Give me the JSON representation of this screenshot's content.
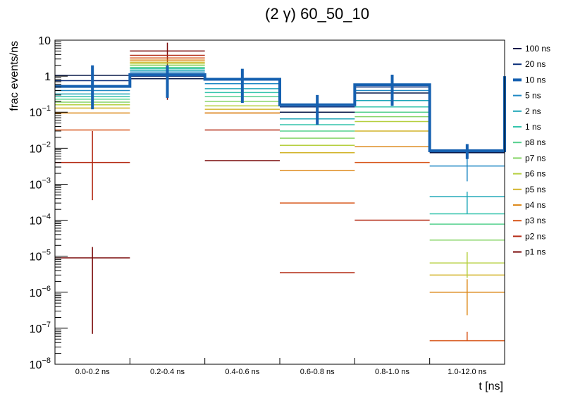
{
  "chart_data": {
    "type": "line",
    "style": "log-scale step histogram with error bars",
    "title": "(2 γ) 60_50_10",
    "xlabel": "t [ns]",
    "ylabel": "frac events/ns",
    "yscale": "log",
    "ylim": [
      1e-08,
      10
    ],
    "y_ticks": [
      {
        "value": 10,
        "base": "10",
        "exp": ""
      },
      {
        "value": 1,
        "base": "1",
        "exp": ""
      },
      {
        "value": 0.1,
        "base": "10",
        "exp": "−1"
      },
      {
        "value": 0.01,
        "base": "10",
        "exp": "−2"
      },
      {
        "value": 0.001,
        "base": "10",
        "exp": "−3"
      },
      {
        "value": 0.0001,
        "base": "10",
        "exp": "−4"
      },
      {
        "value": 1e-05,
        "base": "10",
        "exp": "−5"
      },
      {
        "value": 1e-06,
        "base": "10",
        "exp": "−6"
      },
      {
        "value": 1e-07,
        "base": "10",
        "exp": "−7"
      },
      {
        "value": 1e-08,
        "base": "10",
        "exp": "−8"
      }
    ],
    "categories": [
      "0.0-0.2 ns",
      "0.2-0.4 ns",
      "0.4-0.6 ns",
      "0.6-0.8 ns",
      "0.8-1.0 ns",
      "1.0-12.0 ns"
    ],
    "legend_position": "right",
    "series": [
      {
        "name": "100 ns",
        "color": "#0a1a4a",
        "values": [
          1.05,
          0.85,
          0.85,
          0.1,
          0.34,
          0.0075
        ]
      },
      {
        "name": "20 ns",
        "color": "#0b2f7a",
        "values": [
          0.75,
          1.0,
          0.8,
          0.14,
          0.5,
          0.0085
        ]
      },
      {
        "name": "10 ns",
        "color": "#1560b0",
        "values": [
          0.52,
          1.1,
          0.82,
          0.16,
          0.58,
          0.0085
        ],
        "thick": true,
        "errors": [
          [
            0.12,
            2.0
          ],
          [
            0.25,
            2.0
          ],
          [
            0.18,
            1.6
          ],
          [
            0.045,
            0.3
          ],
          [
            0.15,
            1.1
          ],
          [
            0.005,
            0.013
          ]
        ]
      },
      {
        "name": "5 ns",
        "color": "#1f88c4",
        "values": [
          0.4,
          1.3,
          0.62,
          0.1,
          0.4,
          0.0032
        ],
        "errors": [
          [
            0.4,
            0.4
          ],
          [
            1.3,
            1.3
          ],
          [
            0.62,
            0.62
          ],
          [
            0.1,
            0.1
          ],
          [
            0.4,
            0.4
          ],
          [
            0.0012,
            0.0062
          ]
        ]
      },
      {
        "name": "2 ns",
        "color": "#1ea6b8",
        "values": [
          0.32,
          1.45,
          0.45,
          0.065,
          0.21,
          0.00045
        ],
        "errors": [
          [
            0.32,
            0.32
          ],
          [
            1.45,
            1.45
          ],
          [
            0.45,
            0.45
          ],
          [
            0.065,
            0.065
          ],
          [
            0.21,
            0.21
          ],
          [
            0.00015,
            0.00062
          ]
        ]
      },
      {
        "name": "1 ns",
        "color": "#33c4ac",
        "values": [
          0.27,
          1.6,
          0.35,
          0.045,
          0.14,
          0.00015
        ]
      },
      {
        "name": "p8 ns",
        "color": "#55d08e",
        "values": [
          0.23,
          1.75,
          0.27,
          0.03,
          0.1,
          7.8e-05
        ]
      },
      {
        "name": "p7 ns",
        "color": "#86d466",
        "values": [
          0.19,
          1.95,
          0.2,
          0.019,
          0.075,
          2.8e-05
        ]
      },
      {
        "name": "p6 ns",
        "color": "#b6cf3f",
        "values": [
          0.16,
          2.2,
          0.15,
          0.012,
          0.055,
          6.5e-06
        ],
        "errors": [
          [
            0.16,
            0.16
          ],
          [
            2.2,
            2.2
          ],
          [
            0.15,
            0.15
          ],
          [
            0.012,
            0.012
          ],
          [
            0.055,
            0.055
          ],
          [
            2.5e-06,
            1.3e-05
          ]
        ]
      },
      {
        "name": "p5 ns",
        "color": "#d2b42a",
        "values": [
          0.13,
          2.45,
          0.12,
          0.0075,
          0.03,
          3e-06
        ]
      },
      {
        "name": "p4 ns",
        "color": "#dd8a1c",
        "values": [
          0.095,
          2.8,
          0.095,
          0.0024,
          0.011,
          1e-06
        ],
        "errors": [
          [
            0.095,
            0.095
          ],
          [
            2.8,
            2.8
          ],
          [
            0.095,
            0.095
          ],
          [
            0.0024,
            0.0024
          ],
          [
            0.011,
            0.011
          ],
          [
            2.3e-07,
            2.3e-06
          ]
        ]
      },
      {
        "name": "p3 ns",
        "color": "#d7561a",
        "values": [
          0.032,
          3.2,
          0.095,
          0.0003,
          0.004,
          4.5e-08
        ],
        "errors": [
          [
            0.032,
            0.032
          ],
          [
            3.2,
            3.2
          ],
          [
            0.095,
            0.095
          ],
          [
            0.0003,
            0.0003
          ],
          [
            0.004,
            0.004
          ],
          [
            4.5e-08,
            8e-08
          ]
        ]
      },
      {
        "name": "p2 ns",
        "color": "#b42a14",
        "values": [
          0.004,
          3.8,
          0.032,
          3.5e-06,
          0.0001,
          null
        ],
        "errors": [
          [
            0.00036,
            0.03
          ],
          [
            3.8,
            3.8
          ],
          [
            0.032,
            0.032
          ],
          [
            3.5e-06,
            3.5e-06
          ],
          [
            0.0001,
            0.0001
          ],
          null
        ]
      },
      {
        "name": "p1 ns",
        "color": "#7a0a0a",
        "values": [
          9e-06,
          5.0,
          0.0045,
          null,
          null,
          null
        ],
        "errors": [
          [
            7e-08,
            1.8e-05
          ],
          [
            0.22,
            8.5
          ],
          [
            0.0045,
            0.0045
          ],
          null,
          null,
          null
        ]
      }
    ]
  }
}
